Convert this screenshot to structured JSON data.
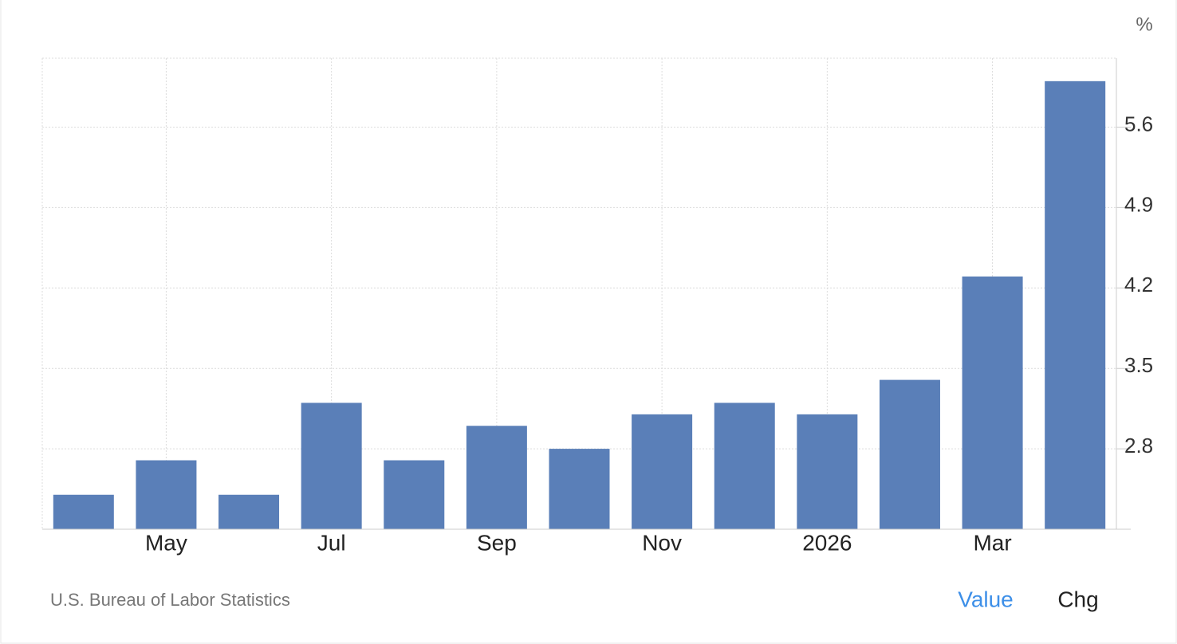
{
  "chart_data": {
    "type": "bar",
    "unit": "%",
    "source": "U.S. Bureau of Labor Statistics",
    "buttons": [
      "Value",
      "Chg"
    ],
    "categories": [
      null,
      "May",
      null,
      "Jul",
      null,
      "Sep",
      null,
      "Nov",
      null,
      "2026",
      null,
      "Mar",
      null
    ],
    "values": [
      2.4,
      2.7,
      2.4,
      3.2,
      2.7,
      3.0,
      2.8,
      3.1,
      3.2,
      3.1,
      3.4,
      4.3,
      6.0
    ],
    "color": "#5a7fb8",
    "ylim": [
      2.1,
      6.2
    ],
    "yticks": [
      2.8,
      3.5,
      4.2,
      4.9,
      5.6
    ],
    "grid": true
  }
}
